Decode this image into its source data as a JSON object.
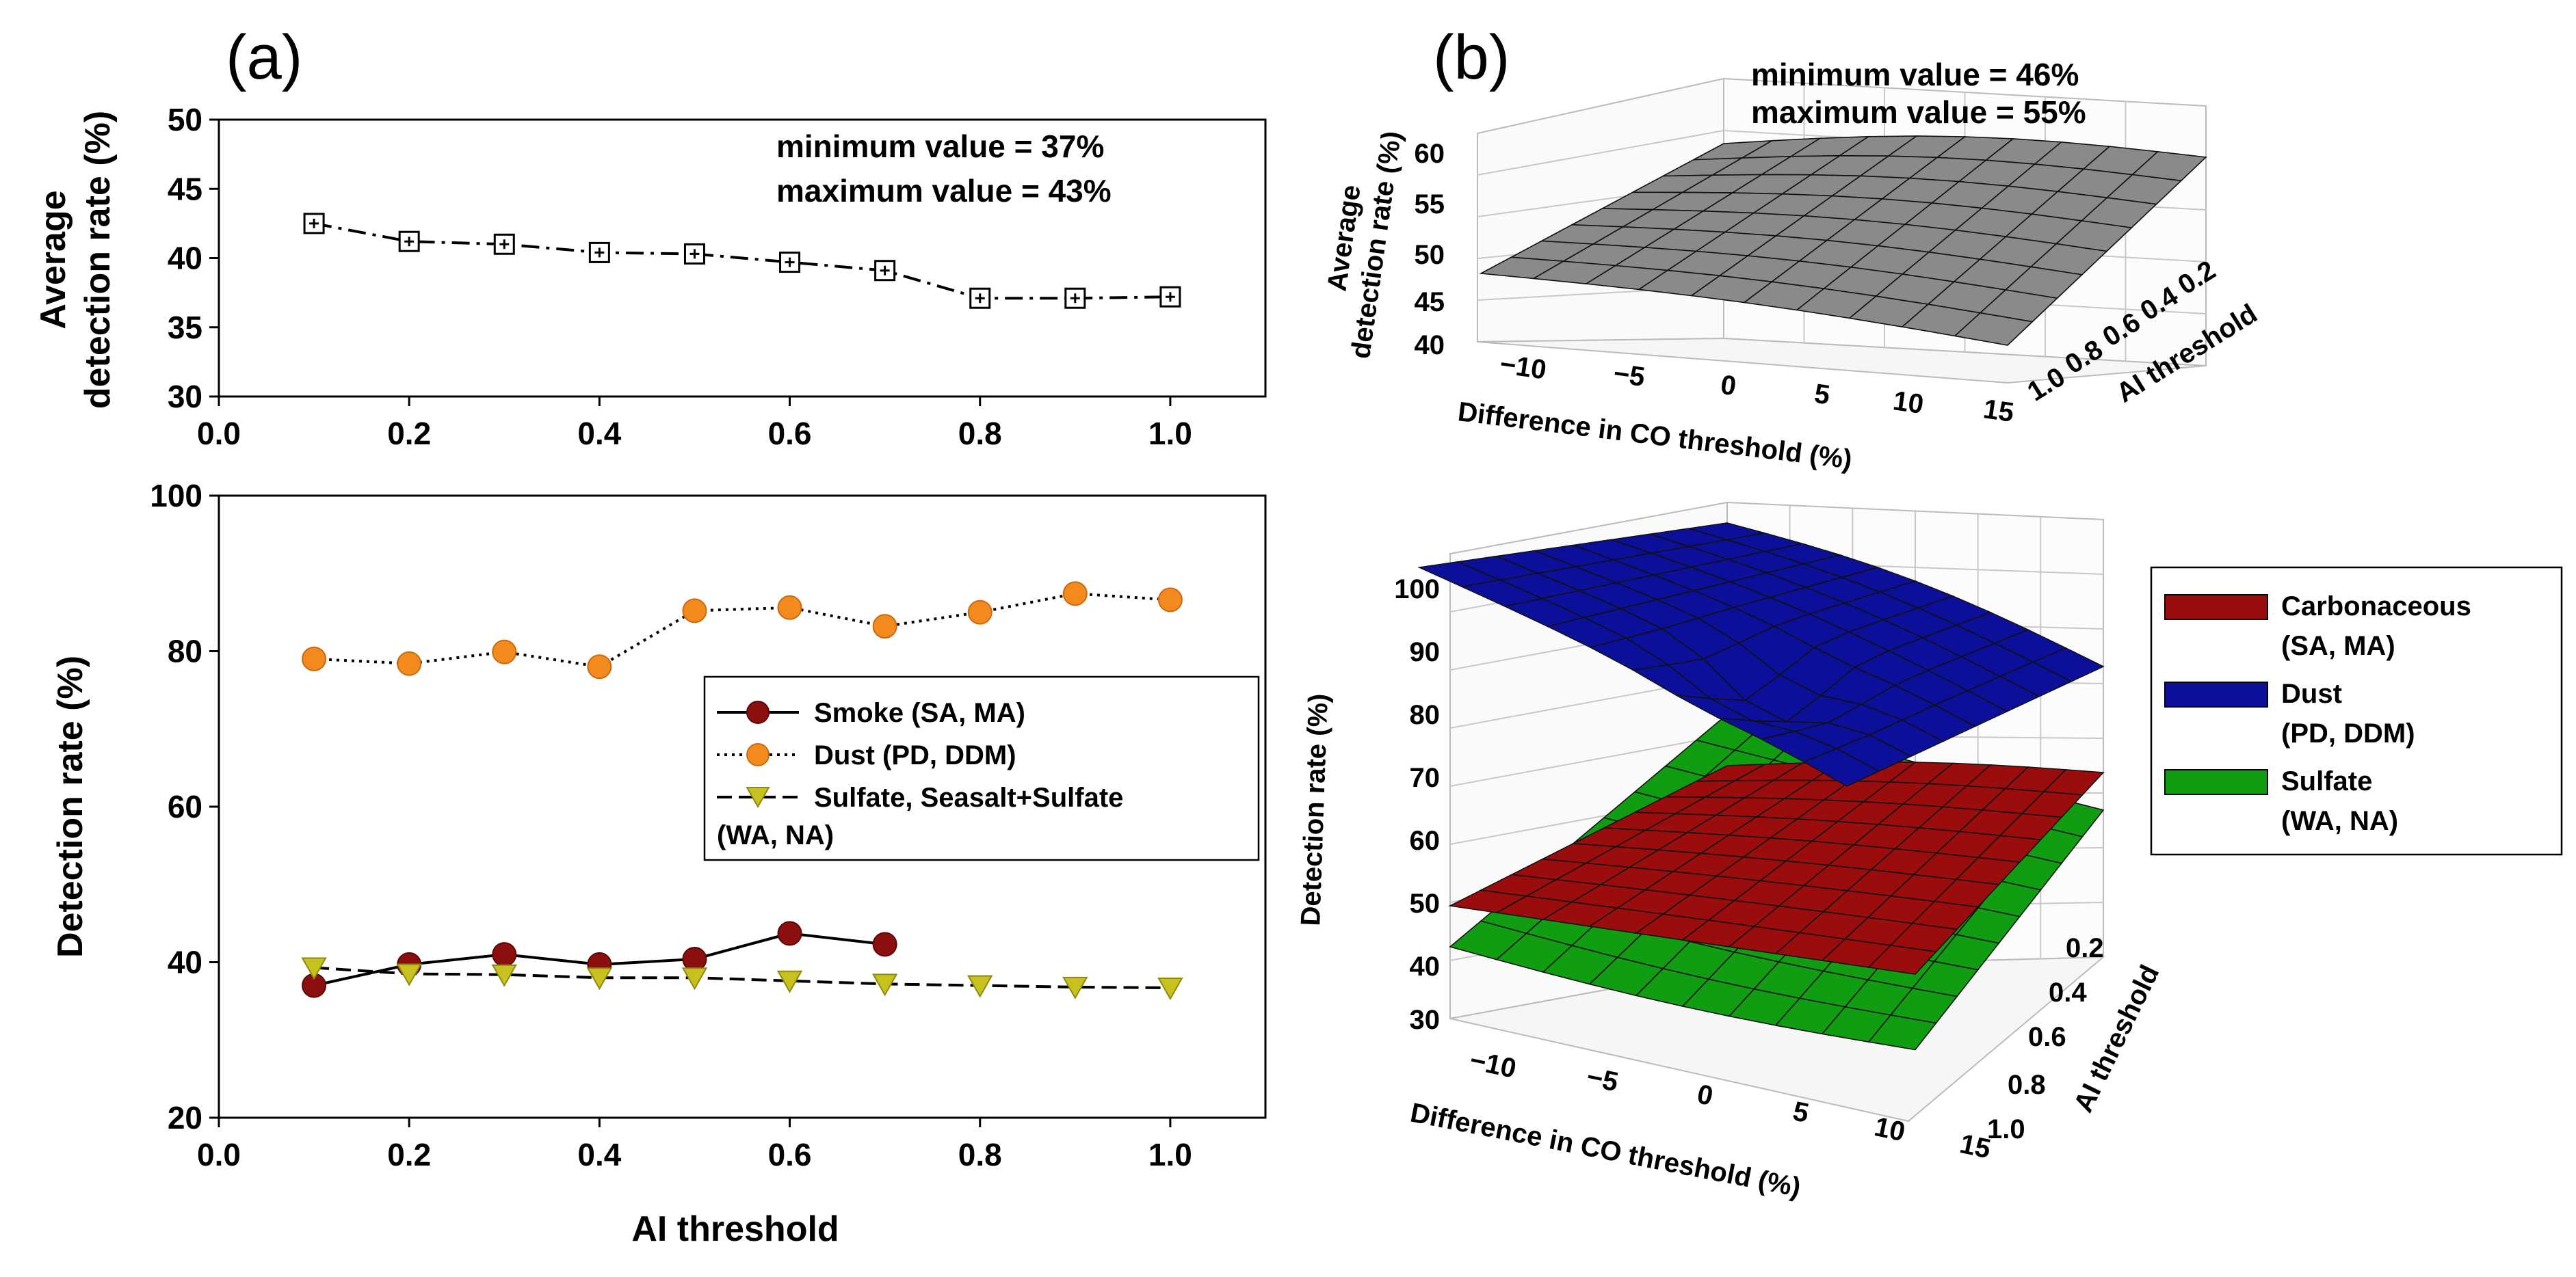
{
  "panel_labels": {
    "a": "(a)",
    "b": "(b)"
  },
  "chart_data": [
    {
      "id": "a-top",
      "type": "line",
      "title": "",
      "xlabel": "",
      "ylabel": [
        "Average",
        "detection rate (%)"
      ],
      "xlim": [
        0,
        1.1
      ],
      "ylim": [
        30,
        50
      ],
      "x_ticks": [
        "0.0",
        "0.2",
        "0.4",
        "0.6",
        "0.8",
        "1.0"
      ],
      "y_ticks": [
        "30",
        "35",
        "40",
        "45",
        "50"
      ],
      "annotations": [
        "minimum value = 37%",
        "maximum value = 43%"
      ],
      "series": [
        {
          "name": "Average detection rate",
          "color": "#000000",
          "x": [
            0.1,
            0.2,
            0.3,
            0.4,
            0.5,
            0.6,
            0.7,
            0.8,
            0.9,
            1.0
          ],
          "values": [
            42.5,
            41.2,
            41.0,
            40.4,
            40.3,
            39.7,
            39.1,
            37.1,
            37.1,
            37.2
          ]
        }
      ]
    },
    {
      "id": "a-bottom",
      "type": "line",
      "title": "",
      "xlabel": "AI threshold",
      "ylabel": "Detection rate (%)",
      "xlim": [
        0,
        1.1
      ],
      "ylim": [
        20,
        100
      ],
      "x_ticks": [
        "0.0",
        "0.2",
        "0.4",
        "0.6",
        "0.8",
        "1.0"
      ],
      "y_ticks": [
        "20",
        "40",
        "60",
        "80",
        "100"
      ],
      "legend": [
        "Smoke (SA, MA)",
        "Dust (PD, DDM)",
        "Sulfate, Seasalt+Sulfate",
        "(WA, NA)"
      ],
      "series": [
        {
          "name": "Smoke (SA, MA)",
          "color": "#8b0f0f",
          "x": [
            0.1,
            0.2,
            0.3,
            0.4,
            0.5,
            0.6,
            0.7
          ],
          "values": [
            37.0,
            39.7,
            41.0,
            39.7,
            40.4,
            43.7,
            42.3
          ]
        },
        {
          "name": "Dust (PD, DDM)",
          "color": "#f28a1e",
          "x": [
            0.1,
            0.2,
            0.3,
            0.4,
            0.5,
            0.6,
            0.7,
            0.8,
            0.9,
            1.0
          ],
          "values": [
            79.0,
            78.4,
            79.9,
            78.0,
            85.2,
            85.6,
            83.2,
            85.0,
            87.4,
            86.6
          ]
        },
        {
          "name": "Sulfate, Seasalt+Sulfate (WA, NA)",
          "color": "#c7c21d",
          "x": [
            0.1,
            0.2,
            0.3,
            0.4,
            0.5,
            0.6,
            0.7,
            0.8,
            0.9,
            1.0
          ],
          "values": [
            39.3,
            38.5,
            38.4,
            38.0,
            38.0,
            37.6,
            37.2,
            37.0,
            36.8,
            36.7
          ]
        }
      ]
    },
    {
      "id": "b-top",
      "type": "surface",
      "xlabel": "Difference in CO threshold (%)",
      "ylabel": "AI threshold",
      "zlabel": [
        "Average",
        "detection rate (%)"
      ],
      "x_ticks": [
        "−10",
        "−5",
        "0",
        "5",
        "10",
        "15"
      ],
      "y_ticks": [
        "1.0",
        "0.8",
        "0.6",
        "0.4",
        "0.2"
      ],
      "z_ticks": [
        "40",
        "45",
        "50",
        "55",
        "60"
      ],
      "annotations": [
        "minimum value = 46%",
        "maximum value = 55%"
      ],
      "series": [
        {
          "name": "Average detection rate",
          "color": "#808080",
          "zlim": [
            46,
            55
          ]
        }
      ]
    },
    {
      "id": "b-bottom",
      "type": "surface",
      "xlabel": "Difference in CO threshold (%)",
      "ylabel": "AI threshold",
      "zlabel": "Detection rate (%)",
      "x_ticks": [
        "−10",
        "−5",
        "0",
        "5",
        "10",
        "15"
      ],
      "y_ticks": [
        "1.0",
        "0.8",
        "0.6",
        "0.4",
        "0.2"
      ],
      "z_ticks": [
        "30",
        "40",
        "50",
        "60",
        "70",
        "80",
        "90",
        "100"
      ],
      "legend": [
        "Carbonaceous",
        "(SA, MA)",
        "Dust",
        "(PD, DDM)",
        "Sulfate",
        "(WA, NA)"
      ],
      "series": [
        {
          "name": "Carbonaceous (SA, MA)",
          "color": "#9b0d0d"
        },
        {
          "name": "Dust (PD, DDM)",
          "color": "#0c0f9a"
        },
        {
          "name": "Sulfate (WA, NA)",
          "color": "#119d11"
        }
      ]
    }
  ]
}
